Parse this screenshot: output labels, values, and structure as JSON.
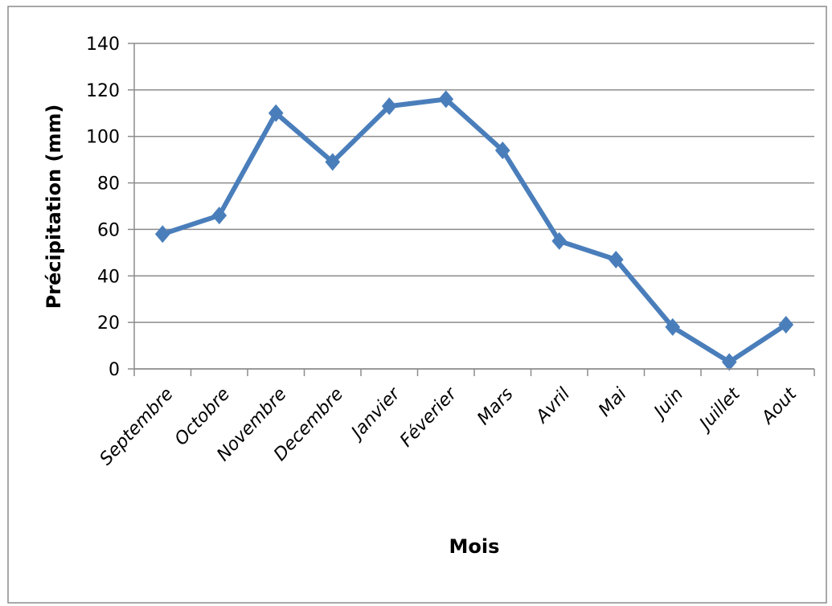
{
  "chart_data": {
    "type": "line",
    "x_label": "Mois",
    "y_label": "Précipitation (mm)",
    "categories": [
      "Septembre",
      "Octobre",
      "Novembre",
      "Decembre",
      "Janvier",
      "Féverier",
      "Mars",
      "Avril",
      "Mai",
      "Juin",
      "Juillet",
      "Aout"
    ],
    "series": [
      {
        "name": "Précipitation",
        "color": "#4a7ebb",
        "values": [
          58,
          66,
          110,
          89,
          113,
          116,
          94,
          55,
          47,
          18,
          3,
          19
        ]
      }
    ],
    "ylim": [
      0,
      140
    ],
    "yticks": [
      0,
      20,
      40,
      60,
      80,
      100,
      120,
      140
    ],
    "grid": true
  }
}
